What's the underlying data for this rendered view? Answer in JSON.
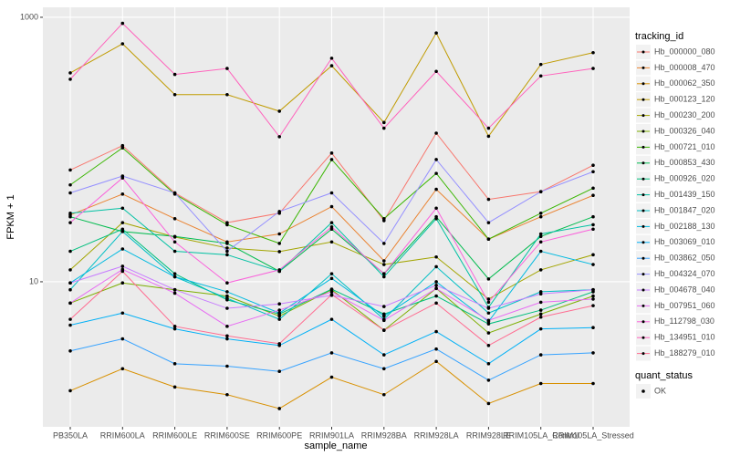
{
  "chart_data": {
    "type": "line",
    "x_label": "sample_name",
    "y_label": "FPKM + 1",
    "log_y": true,
    "grid": true,
    "ylim": [
      0.8,
      1190
    ],
    "yticks": [
      10,
      1000
    ],
    "categories": [
      "PB350LA",
      "RRIM600LA",
      "RRIM600LE",
      "RRIM600SE",
      "RRIM600PE",
      "RRIM901LA",
      "RRIM928BA",
      "RRIM928LA",
      "RRIM928LE",
      "RRIM105LA_Control",
      "RRIM105LA_Stressed"
    ],
    "legend_title": "tracking_id",
    "point_legend": {
      "title": "quant_status",
      "labels": [
        "OK"
      ],
      "color": "#000000"
    },
    "series": [
      {
        "name": "Hb_000000_080",
        "color": "#F8766D",
        "values": [
          70,
          107,
          47,
          28,
          33,
          94,
          29,
          133,
          42,
          48,
          76
        ]
      },
      {
        "name": "Hb_000008_470",
        "color": "#EA8331",
        "values": [
          32,
          46,
          30,
          20,
          23,
          37,
          14.4,
          50,
          21,
          31,
          45
        ]
      },
      {
        "name": "Hb_000062_350",
        "color": "#D89000",
        "values": [
          1.5,
          2.2,
          1.6,
          1.4,
          1.1,
          1.9,
          1.4,
          2.5,
          1.2,
          1.7,
          1.7
        ]
      },
      {
        "name": "Hb_000123_120",
        "color": "#C09B00",
        "values": [
          380,
          630,
          260,
          260,
          195,
          430,
          160,
          760,
          126,
          440,
          540
        ]
      },
      {
        "name": "Hb_000230_200",
        "color": "#A3A500",
        "values": [
          12.3,
          28,
          21.8,
          18,
          16.9,
          20,
          13.5,
          15.4,
          7.4,
          12.3,
          16
        ]
      },
      {
        "name": "Hb_000326_040",
        "color": "#7CAE00",
        "values": [
          6.9,
          9.8,
          8.7,
          7.8,
          5.5,
          8.7,
          4.3,
          8.9,
          4.1,
          5.7,
          7.8
        ]
      },
      {
        "name": "Hb_000721_010",
        "color": "#39B600",
        "values": [
          54,
          103,
          46,
          27,
          19.5,
          84,
          30,
          66,
          21,
          33,
          51
        ]
      },
      {
        "name": "Hb_000853_430",
        "color": "#00BB4E",
        "values": [
          31,
          24,
          22,
          19.5,
          12,
          25,
          11.5,
          31,
          10.5,
          22,
          31
        ]
      },
      {
        "name": "Hb_000926_020",
        "color": "#00BF7D",
        "values": [
          17,
          25,
          11.5,
          7.3,
          5.7,
          8.8,
          5.7,
          7.8,
          4.8,
          6.1,
          8.4
        ]
      },
      {
        "name": "Hb_001439_150",
        "color": "#00C1A3",
        "values": [
          33,
          36,
          17,
          16,
          12,
          28,
          10.9,
          30,
          6.4,
          23,
          27
        ]
      },
      {
        "name": "Hb_001847_020",
        "color": "#00BFC4",
        "values": [
          8.7,
          24,
          10.9,
          7.5,
          5.2,
          11.5,
          5.2,
          13,
          5.8,
          8.4,
          8.7
        ]
      },
      {
        "name": "Hb_002188_130",
        "color": "#00BAE0",
        "values": [
          9.8,
          17.7,
          10.9,
          8.4,
          5.8,
          10.6,
          5.5,
          10,
          5,
          17,
          13.5
        ]
      },
      {
        "name": "Hb_003069_010",
        "color": "#00B0F6",
        "values": [
          4.7,
          5.8,
          4.4,
          3.7,
          3.3,
          5.2,
          2.8,
          4.2,
          2.4,
          4.4,
          4.5
        ]
      },
      {
        "name": "Hb_003862_050",
        "color": "#35A2FF",
        "values": [
          3.0,
          3.7,
          2.4,
          2.3,
          2.1,
          2.9,
          2.2,
          3.1,
          1.8,
          2.8,
          2.9
        ]
      },
      {
        "name": "Hb_004324_070",
        "color": "#9590FF",
        "values": [
          47,
          63,
          47,
          17,
          34,
          47,
          19.5,
          84,
          28,
          48,
          68
        ]
      },
      {
        "name": "Hb_004678_040",
        "color": "#C77CFF",
        "values": [
          9.8,
          13.1,
          8.7,
          6.3,
          6.8,
          7.9,
          6.5,
          9.4,
          6.3,
          8.1,
          8.7
        ]
      },
      {
        "name": "Hb_007951_060",
        "color": "#E76BF3",
        "values": [
          6.9,
          12.4,
          8.2,
          4.6,
          6.1,
          8.4,
          5.1,
          8.9,
          5.1,
          7.0,
          7.4
        ]
      },
      {
        "name": "Hb_112798_030",
        "color": "#FA62DB",
        "values": [
          28,
          61,
          20,
          9.8,
          12.3,
          26,
          11.5,
          36,
          7.0,
          20,
          25
        ]
      },
      {
        "name": "Hb_134951_010",
        "color": "#FF62BC",
        "values": [
          340,
          900,
          370,
          410,
          125,
          490,
          145,
          390,
          145,
          360,
          410
        ]
      },
      {
        "name": "Hb_188279_010",
        "color": "#FF6C91",
        "values": [
          5.2,
          12,
          4.6,
          3.9,
          3.4,
          8,
          4.3,
          6.9,
          3.3,
          5.4,
          6.6
        ]
      }
    ]
  }
}
